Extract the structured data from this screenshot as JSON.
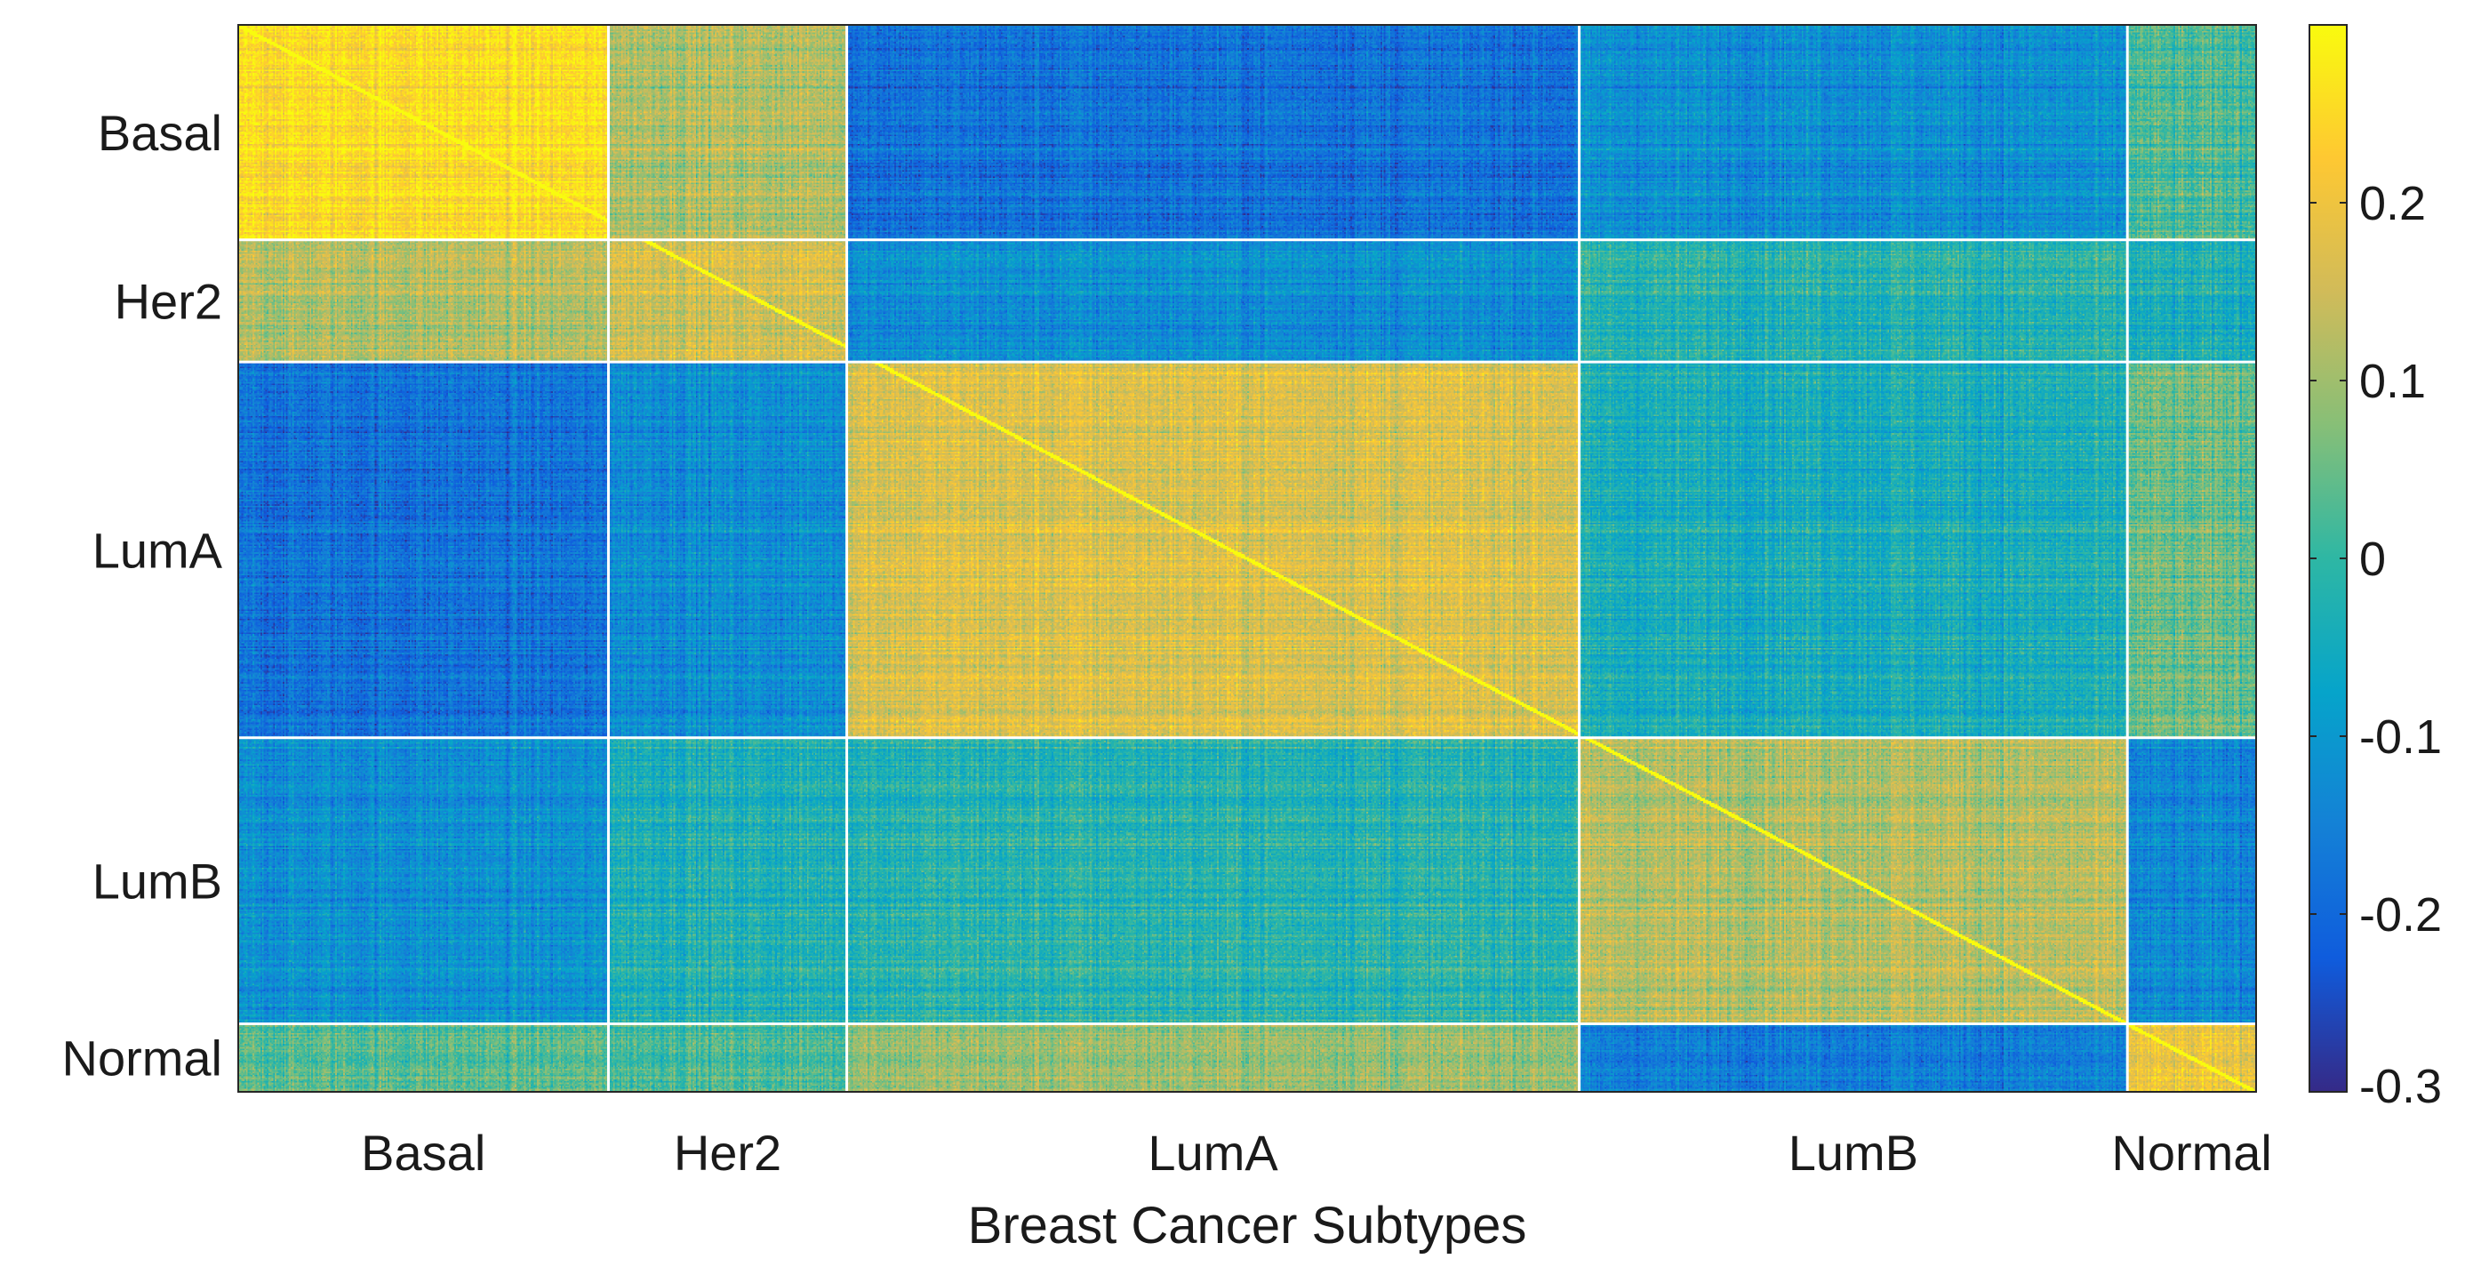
{
  "chart_data": {
    "type": "heatmap",
    "title": "",
    "xlabel": "Breast Cancer Subtypes",
    "ylabel": "",
    "row_categories": [
      "Basal",
      "Her2",
      "LumA",
      "LumB",
      "Normal"
    ],
    "col_categories": [
      "Basal",
      "Her2",
      "LumA",
      "LumB",
      "Normal"
    ],
    "group_block_means": [
      [
        0.25,
        0.12,
        -0.18,
        -0.12,
        0.02
      ],
      [
        0.12,
        0.16,
        -0.12,
        -0.02,
        -0.04
      ],
      [
        -0.18,
        -0.12,
        0.17,
        -0.04,
        0.05
      ],
      [
        -0.12,
        -0.03,
        -0.02,
        0.12,
        -0.14
      ],
      [
        0.03,
        0.02,
        0.09,
        -0.16,
        0.19
      ]
    ],
    "colorbar": {
      "colormap": "parula",
      "range": [
        -0.3,
        0.3
      ],
      "ticks": [
        -0.3,
        -0.2,
        -0.1,
        0,
        0.1,
        0.2
      ],
      "tick_labels": [
        "-0.3",
        "-0.2",
        "-0.1",
        "0",
        "0.1",
        "0.2"
      ],
      "stops": [
        "#352a87",
        "#0f5cdd",
        "#1481d6",
        "#06a4ca",
        "#2eb7a4",
        "#87bf77",
        "#d1bb59",
        "#fec832",
        "#f9fb0e"
      ]
    },
    "grid": false,
    "separator_color": "#ffffff"
  }
}
